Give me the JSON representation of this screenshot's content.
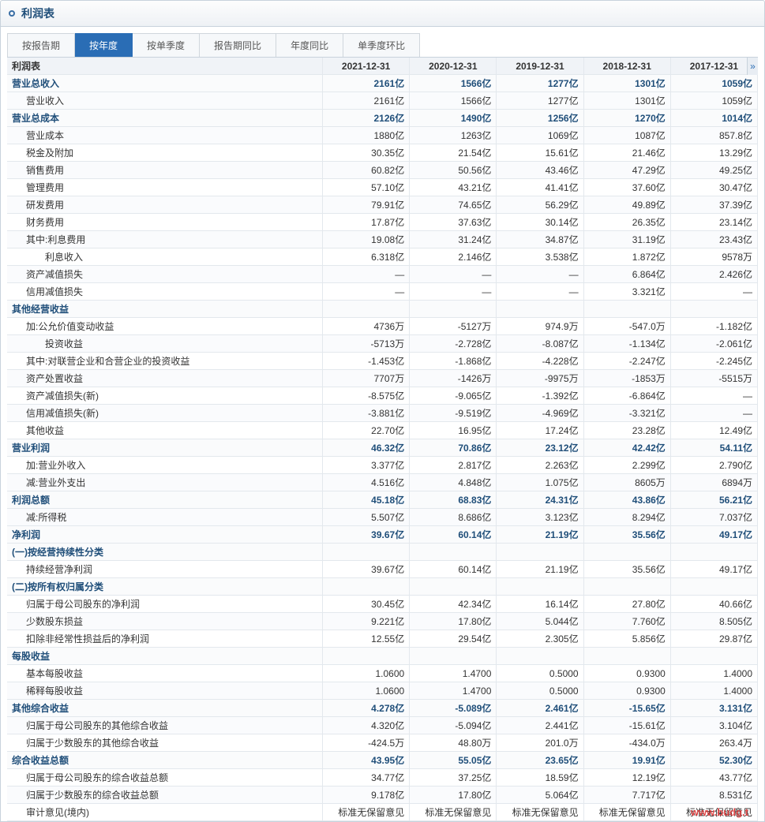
{
  "title": "利润表",
  "tabs": [
    "按报告期",
    "按年度",
    "按单季度",
    "报告期同比",
    "年度同比",
    "单季度环比"
  ],
  "activeTab": 1,
  "dates": [
    "2021-12-31",
    "2020-12-31",
    "2019-12-31",
    "2018-12-31",
    "2017-12-31"
  ],
  "tableHeader": "利润表",
  "scrollHint": "»",
  "watermark": "www.budg.t",
  "rows": [
    {
      "label": "营业总收入",
      "cat": true,
      "v": [
        "2161亿",
        "1566亿",
        "1277亿",
        "1301亿",
        "1059亿"
      ]
    },
    {
      "label": "营业收入",
      "i": 1,
      "v": [
        "2161亿",
        "1566亿",
        "1277亿",
        "1301亿",
        "1059亿"
      ]
    },
    {
      "label": "营业总成本",
      "cat": true,
      "v": [
        "2126亿",
        "1490亿",
        "1256亿",
        "1270亿",
        "1014亿"
      ]
    },
    {
      "label": "营业成本",
      "i": 1,
      "v": [
        "1880亿",
        "1263亿",
        "1069亿",
        "1087亿",
        "857.8亿"
      ]
    },
    {
      "label": "税金及附加",
      "i": 1,
      "v": [
        "30.35亿",
        "21.54亿",
        "15.61亿",
        "21.46亿",
        "13.29亿"
      ]
    },
    {
      "label": "销售费用",
      "i": 1,
      "v": [
        "60.82亿",
        "50.56亿",
        "43.46亿",
        "47.29亿",
        "49.25亿"
      ]
    },
    {
      "label": "管理费用",
      "i": 1,
      "v": [
        "57.10亿",
        "43.21亿",
        "41.41亿",
        "37.60亿",
        "30.47亿"
      ]
    },
    {
      "label": "研发费用",
      "i": 1,
      "v": [
        "79.91亿",
        "74.65亿",
        "56.29亿",
        "49.89亿",
        "37.39亿"
      ]
    },
    {
      "label": "财务费用",
      "i": 1,
      "v": [
        "17.87亿",
        "37.63亿",
        "30.14亿",
        "26.35亿",
        "23.14亿"
      ]
    },
    {
      "label": "其中:利息费用",
      "i": 1,
      "v": [
        "19.08亿",
        "31.24亿",
        "34.87亿",
        "31.19亿",
        "23.43亿"
      ]
    },
    {
      "label": "利息收入",
      "i": 2,
      "v": [
        "6.318亿",
        "2.146亿",
        "3.538亿",
        "1.872亿",
        "9578万"
      ]
    },
    {
      "label": "资产减值损失",
      "i": 1,
      "v": [
        "—",
        "—",
        "—",
        "6.864亿",
        "2.426亿"
      ]
    },
    {
      "label": "信用减值损失",
      "i": 1,
      "v": [
        "—",
        "—",
        "—",
        "3.321亿",
        "—"
      ]
    },
    {
      "label": "其他经营收益",
      "cat": true,
      "v": [
        "",
        "",
        "",
        "",
        ""
      ]
    },
    {
      "label": "加:公允价值变动收益",
      "i": 1,
      "v": [
        "4736万",
        "-5127万",
        "974.9万",
        "-547.0万",
        "-1.182亿"
      ]
    },
    {
      "label": "投资收益",
      "i": 2,
      "v": [
        "-5713万",
        "-2.728亿",
        "-8.087亿",
        "-1.134亿",
        "-2.061亿"
      ]
    },
    {
      "label": "其中:对联营企业和合营企业的投资收益",
      "i": 1,
      "v": [
        "-1.453亿",
        "-1.868亿",
        "-4.228亿",
        "-2.247亿",
        "-2.245亿"
      ]
    },
    {
      "label": "资产处置收益",
      "i": 1,
      "v": [
        "7707万",
        "-1426万",
        "-9975万",
        "-1853万",
        "-5515万"
      ]
    },
    {
      "label": "资产减值损失(新)",
      "i": 1,
      "v": [
        "-8.575亿",
        "-9.065亿",
        "-1.392亿",
        "-6.864亿",
        "—"
      ]
    },
    {
      "label": "信用减值损失(新)",
      "i": 1,
      "v": [
        "-3.881亿",
        "-9.519亿",
        "-4.969亿",
        "-3.321亿",
        "—"
      ]
    },
    {
      "label": "其他收益",
      "i": 1,
      "v": [
        "22.70亿",
        "16.95亿",
        "17.24亿",
        "23.28亿",
        "12.49亿"
      ]
    },
    {
      "label": "营业利润",
      "cat": true,
      "v": [
        "46.32亿",
        "70.86亿",
        "23.12亿",
        "42.42亿",
        "54.11亿"
      ]
    },
    {
      "label": "加:营业外收入",
      "i": 1,
      "v": [
        "3.377亿",
        "2.817亿",
        "2.263亿",
        "2.299亿",
        "2.790亿"
      ]
    },
    {
      "label": "减:营业外支出",
      "i": 1,
      "v": [
        "4.516亿",
        "4.848亿",
        "1.075亿",
        "8605万",
        "6894万"
      ]
    },
    {
      "label": "利润总额",
      "cat": true,
      "v": [
        "45.18亿",
        "68.83亿",
        "24.31亿",
        "43.86亿",
        "56.21亿"
      ]
    },
    {
      "label": "减:所得税",
      "i": 1,
      "v": [
        "5.507亿",
        "8.686亿",
        "3.123亿",
        "8.294亿",
        "7.037亿"
      ]
    },
    {
      "label": "净利润",
      "cat": true,
      "v": [
        "39.67亿",
        "60.14亿",
        "21.19亿",
        "35.56亿",
        "49.17亿"
      ]
    },
    {
      "label": "(一)按经营持续性分类",
      "cat": true,
      "v": [
        "",
        "",
        "",
        "",
        ""
      ]
    },
    {
      "label": "持续经营净利润",
      "i": 1,
      "v": [
        "39.67亿",
        "60.14亿",
        "21.19亿",
        "35.56亿",
        "49.17亿"
      ]
    },
    {
      "label": "(二)按所有权归属分类",
      "cat": true,
      "v": [
        "",
        "",
        "",
        "",
        ""
      ]
    },
    {
      "label": "归属于母公司股东的净利润",
      "i": 1,
      "v": [
        "30.45亿",
        "42.34亿",
        "16.14亿",
        "27.80亿",
        "40.66亿"
      ]
    },
    {
      "label": "少数股东损益",
      "i": 1,
      "v": [
        "9.221亿",
        "17.80亿",
        "5.044亿",
        "7.760亿",
        "8.505亿"
      ]
    },
    {
      "label": "扣除非经常性损益后的净利润",
      "i": 1,
      "v": [
        "12.55亿",
        "29.54亿",
        "2.305亿",
        "5.856亿",
        "29.87亿"
      ]
    },
    {
      "label": "每股收益",
      "cat": true,
      "v": [
        "",
        "",
        "",
        "",
        ""
      ]
    },
    {
      "label": "基本每股收益",
      "i": 1,
      "v": [
        "1.0600",
        "1.4700",
        "0.5000",
        "0.9300",
        "1.4000"
      ]
    },
    {
      "label": "稀释每股收益",
      "i": 1,
      "v": [
        "1.0600",
        "1.4700",
        "0.5000",
        "0.9300",
        "1.4000"
      ]
    },
    {
      "label": "其他综合收益",
      "cat": true,
      "v": [
        "4.278亿",
        "-5.089亿",
        "2.461亿",
        "-15.65亿",
        "3.131亿"
      ]
    },
    {
      "label": "归属于母公司股东的其他综合收益",
      "i": 1,
      "v": [
        "4.320亿",
        "-5.094亿",
        "2.441亿",
        "-15.61亿",
        "3.104亿"
      ]
    },
    {
      "label": "归属于少数股东的其他综合收益",
      "i": 1,
      "v": [
        "-424.5万",
        "48.80万",
        "201.0万",
        "-434.0万",
        "263.4万"
      ]
    },
    {
      "label": "综合收益总额",
      "cat": true,
      "v": [
        "43.95亿",
        "55.05亿",
        "23.65亿",
        "19.91亿",
        "52.30亿"
      ]
    },
    {
      "label": "归属于母公司股东的综合收益总额",
      "i": 1,
      "v": [
        "34.77亿",
        "37.25亿",
        "18.59亿",
        "12.19亿",
        "43.77亿"
      ]
    },
    {
      "label": "归属于少数股东的综合收益总额",
      "i": 1,
      "v": [
        "9.178亿",
        "17.80亿",
        "5.064亿",
        "7.717亿",
        "8.531亿"
      ]
    },
    {
      "label": "审计意见(境内)",
      "i": 1,
      "v": [
        "标准无保留意见",
        "标准无保留意见",
        "标准无保留意见",
        "标准无保留意见",
        "标准无保留意见"
      ]
    }
  ]
}
